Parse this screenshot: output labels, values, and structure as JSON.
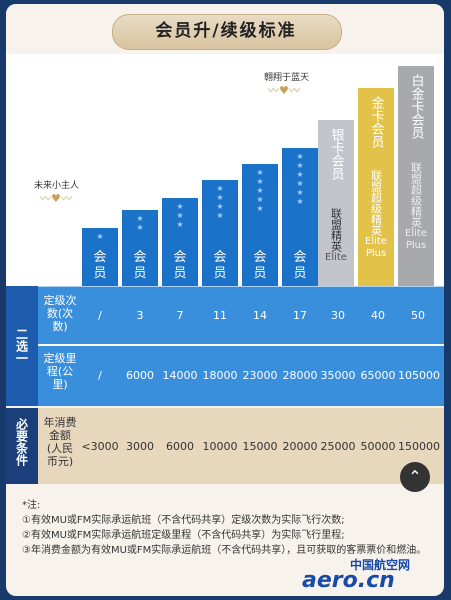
{
  "title": "会员升/续级标准",
  "captions": {
    "left": "未来小主人",
    "right": "翱翔于蓝天"
  },
  "basic": {
    "bars": [
      {
        "stars": "★",
        "label": "会员"
      },
      {
        "stars": "★\n★",
        "label": "会员"
      },
      {
        "stars": "★\n★\n★",
        "label": "会员"
      },
      {
        "stars": "★\n★\n★\n★",
        "label": "会员"
      },
      {
        "stars": "★\n★\n★\n★\n★",
        "label": "会员"
      },
      {
        "stars": "★\n★\n★\n★\n★\n★",
        "label": "会员"
      }
    ]
  },
  "tiers": [
    {
      "name": "银卡会员",
      "sub": "联盟精英",
      "eng": "Elite"
    },
    {
      "name": "金卡会员",
      "sub": "联盟超级精英",
      "eng": "Elite Plus"
    },
    {
      "name": "白金卡会员",
      "sub": "联盟超级精英",
      "eng": "Elite Plus"
    }
  ],
  "either_label": "二选一",
  "rows": [
    {
      "label": "定级次数(次数)",
      "values": [
        "/",
        "3",
        "7",
        "11",
        "14",
        "17",
        "30",
        "40",
        "50"
      ]
    },
    {
      "label": "定级里程(公里)",
      "values": [
        "/",
        "6000",
        "14000",
        "18000",
        "23000",
        "28000",
        "35000",
        "65000",
        "105000"
      ]
    }
  ],
  "required_label": "必要条件",
  "spend_row": {
    "label": "年消费金额(人民币元)",
    "values": [
      "<3000",
      "3000",
      "6000",
      "10000",
      "15000",
      "20000",
      "25000",
      "50000",
      "150000"
    ]
  },
  "notes": [
    "*注:",
    "①有效MU或FM实际承运航班（不含代码共享）定级次数为实际飞行次数;",
    "②有效MU或FM实际承运航班定级里程（不含代码共享）为实际飞行里程;",
    "③年消费金额为有效MU或FM实际承运航班（不含代码共享），且可获取的客票票价和燃油。"
  ],
  "logo": {
    "top": "中国航空网",
    "main": "aero.cn"
  },
  "fab_icon": "chevron-up-icon"
}
